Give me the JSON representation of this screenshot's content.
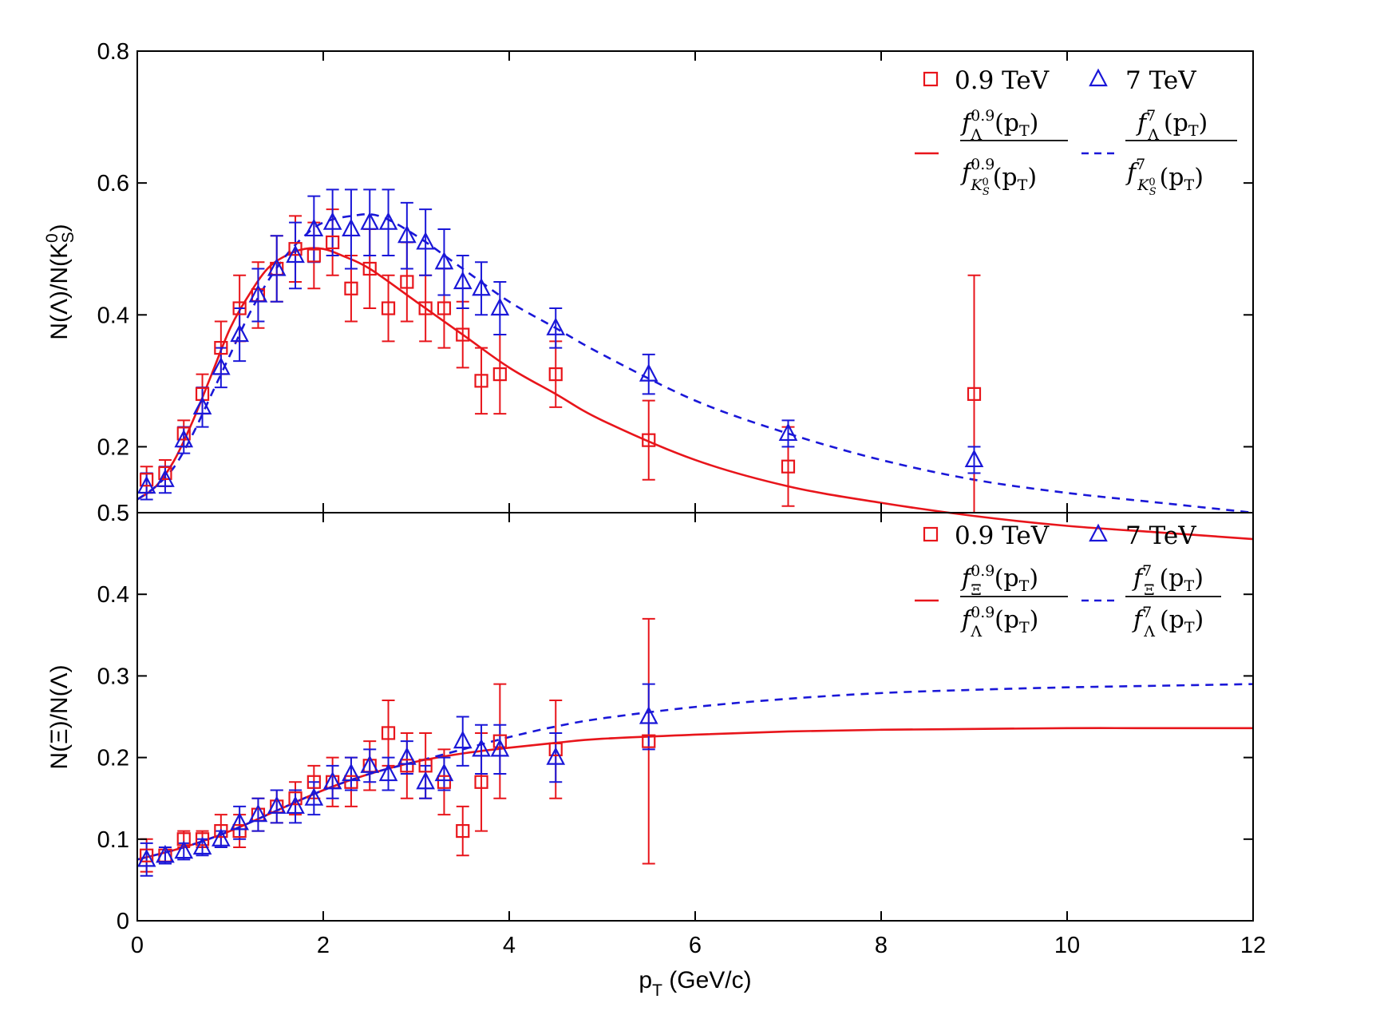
{
  "chart_data": [
    {
      "type": "scatter",
      "panel": "top",
      "ylabel_text": "N(Λ)/N(K",
      "ylabel_sup": "0",
      "ylabel_sub": "S",
      "ylabel_close": ")",
      "xlim": [
        0,
        12
      ],
      "ylim": [
        0.1,
        0.8
      ],
      "yticks": [
        0.2,
        0.4,
        0.6,
        0.8
      ],
      "ytick_labels": [
        "0.2",
        "0.4",
        "0.6",
        "0.8"
      ],
      "bottom_label": "0.5",
      "series": [
        {
          "name": "0.9 TeV",
          "color": "#e8151b",
          "marker": "square",
          "x": [
            0.1,
            0.3,
            0.5,
            0.7,
            0.9,
            1.1,
            1.3,
            1.5,
            1.7,
            1.9,
            2.1,
            2.3,
            2.5,
            2.7,
            2.9,
            3.1,
            3.3,
            3.5,
            3.7,
            3.9,
            4.5,
            5.5,
            7.0,
            9.0
          ],
          "y": [
            0.15,
            0.16,
            0.22,
            0.28,
            0.35,
            0.41,
            0.43,
            0.47,
            0.5,
            0.49,
            0.51,
            0.44,
            0.47,
            0.41,
            0.45,
            0.41,
            0.41,
            0.37,
            0.3,
            0.31,
            0.31,
            0.21,
            0.17,
            0.28
          ],
          "err": [
            0.02,
            0.02,
            0.02,
            0.03,
            0.04,
            0.05,
            0.05,
            0.05,
            0.05,
            0.05,
            0.05,
            0.05,
            0.06,
            0.05,
            0.06,
            0.05,
            0.06,
            0.05,
            0.05,
            0.06,
            0.05,
            0.06,
            0.06,
            0.18
          ]
        },
        {
          "name": "7 TeV",
          "color": "#1a17d8",
          "marker": "triangle",
          "x": [
            0.1,
            0.3,
            0.5,
            0.7,
            0.9,
            1.1,
            1.3,
            1.5,
            1.7,
            1.9,
            2.1,
            2.3,
            2.5,
            2.7,
            2.9,
            3.1,
            3.3,
            3.5,
            3.7,
            3.9,
            4.5,
            5.5,
            7.0,
            9.0
          ],
          "y": [
            0.14,
            0.15,
            0.21,
            0.26,
            0.32,
            0.37,
            0.43,
            0.47,
            0.49,
            0.53,
            0.54,
            0.53,
            0.54,
            0.54,
            0.52,
            0.51,
            0.48,
            0.45,
            0.44,
            0.41,
            0.38,
            0.31,
            0.22,
            0.18
          ],
          "err": [
            0.02,
            0.02,
            0.02,
            0.03,
            0.03,
            0.04,
            0.04,
            0.05,
            0.05,
            0.05,
            0.05,
            0.06,
            0.05,
            0.05,
            0.05,
            0.05,
            0.05,
            0.04,
            0.04,
            0.04,
            0.03,
            0.03,
            0.02,
            0.02
          ]
        }
      ],
      "curves": [
        {
          "name": "f_Λ^0.9(pT)/f_KS0^0.9(pT)",
          "color": "#e8151b",
          "style": "solid",
          "x": [
            0,
            0.2,
            0.4,
            0.6,
            0.8,
            1.0,
            1.2,
            1.4,
            1.6,
            1.8,
            2.0,
            2.2,
            2.5,
            3.0,
            3.5,
            4.0,
            4.5,
            5.0,
            6.0,
            7.0,
            8.0,
            9.0,
            10.0,
            11.0,
            12.0
          ],
          "y": [
            0.12,
            0.14,
            0.18,
            0.24,
            0.31,
            0.38,
            0.43,
            0.47,
            0.49,
            0.5,
            0.5,
            0.49,
            0.47,
            0.42,
            0.37,
            0.32,
            0.28,
            0.24,
            0.18,
            0.14,
            0.115,
            0.095,
            0.08,
            0.07,
            0.06
          ]
        },
        {
          "name": "f_Λ^7(pT)/f_KS0^7(pT)",
          "color": "#1a17d8",
          "style": "dashed",
          "x": [
            0,
            0.2,
            0.4,
            0.6,
            0.8,
            1.0,
            1.2,
            1.4,
            1.6,
            1.8,
            2.0,
            2.3,
            2.6,
            3.0,
            3.5,
            4.0,
            4.5,
            5.0,
            6.0,
            7.0,
            8.0,
            9.0,
            10.0,
            11.0,
            12.0
          ],
          "y": [
            0.12,
            0.14,
            0.17,
            0.22,
            0.28,
            0.34,
            0.4,
            0.45,
            0.49,
            0.52,
            0.54,
            0.55,
            0.55,
            0.52,
            0.47,
            0.42,
            0.38,
            0.34,
            0.27,
            0.22,
            0.18,
            0.15,
            0.13,
            0.115,
            0.1
          ]
        }
      ],
      "legend": {
        "marker_labels": [
          "0.9 TeV",
          "7 TeV"
        ],
        "red_frac": {
          "num_sym": "f",
          "num_sub": "Λ",
          "num_sup": "0.9",
          "num_arg": "(p",
          "num_arg_sub": "T",
          "num_close": ")",
          "den_sym": "f",
          "den_sub": "K",
          "den_sub2": "S",
          "den_subsup": "0",
          "den_sup": "0.9",
          "den_arg": "(p",
          "den_arg_sub": "T",
          "den_close": ")"
        },
        "blue_frac": {
          "num_sym": "f",
          "num_sub": "Λ",
          "num_sup": "7",
          "num_arg": "(p",
          "num_arg_sub": "T",
          "num_close": ")",
          "den_sym": "f",
          "den_sub": "K",
          "den_sub2": "S",
          "den_subsup": "0",
          "den_sup": "7",
          "den_arg": "(p",
          "den_arg_sub": "T",
          "den_close": ")"
        }
      }
    },
    {
      "type": "scatter",
      "panel": "bottom",
      "ylabel": "N(Ξ)/N(Λ)",
      "xlabel_main": "p",
      "xlabel_sub": "T",
      "xlabel_rest": " (GeV/c)",
      "xlim": [
        0,
        12
      ],
      "ylim": [
        0,
        0.5
      ],
      "xticks": [
        0,
        2,
        4,
        6,
        8,
        10,
        12
      ],
      "xtick_labels": [
        "0",
        "2",
        "4",
        "6",
        "8",
        "10",
        "12"
      ],
      "yticks": [
        0,
        0.1,
        0.2,
        0.3,
        0.4
      ],
      "ytick_labels": [
        "0",
        "0.1",
        "0.2",
        "0.3",
        "0.4"
      ],
      "series": [
        {
          "name": "0.9 TeV",
          "color": "#e8151b",
          "marker": "square",
          "x": [
            0.1,
            0.3,
            0.5,
            0.7,
            0.9,
            1.1,
            1.3,
            1.5,
            1.7,
            1.9,
            2.1,
            2.3,
            2.5,
            2.7,
            2.9,
            3.1,
            3.3,
            3.5,
            3.7,
            3.9,
            4.5,
            5.5
          ],
          "y": [
            0.08,
            0.08,
            0.1,
            0.1,
            0.11,
            0.11,
            0.13,
            0.14,
            0.15,
            0.17,
            0.17,
            0.17,
            0.19,
            0.23,
            0.19,
            0.19,
            0.17,
            0.11,
            0.17,
            0.22,
            0.21,
            0.22
          ],
          "err": [
            0.02,
            0.01,
            0.01,
            0.01,
            0.02,
            0.02,
            0.02,
            0.02,
            0.02,
            0.02,
            0.03,
            0.03,
            0.03,
            0.04,
            0.04,
            0.04,
            0.04,
            0.03,
            0.06,
            0.07,
            0.06,
            0.15
          ]
        },
        {
          "name": "7 TeV",
          "color": "#1a17d8",
          "marker": "triangle",
          "x": [
            0.1,
            0.3,
            0.5,
            0.7,
            0.9,
            1.1,
            1.3,
            1.5,
            1.7,
            1.9,
            2.1,
            2.3,
            2.5,
            2.7,
            2.9,
            3.1,
            3.3,
            3.5,
            3.7,
            3.9,
            4.5,
            5.5
          ],
          "y": [
            0.075,
            0.08,
            0.085,
            0.09,
            0.1,
            0.12,
            0.13,
            0.14,
            0.14,
            0.15,
            0.17,
            0.18,
            0.19,
            0.18,
            0.2,
            0.17,
            0.18,
            0.22,
            0.21,
            0.21,
            0.2,
            0.25
          ],
          "err": [
            0.02,
            0.01,
            0.01,
            0.01,
            0.01,
            0.02,
            0.02,
            0.02,
            0.02,
            0.02,
            0.02,
            0.02,
            0.02,
            0.02,
            0.02,
            0.02,
            0.02,
            0.03,
            0.03,
            0.03,
            0.03,
            0.04
          ]
        }
      ],
      "curves": [
        {
          "name": "f_Ξ^0.9(pT)/f_Λ^0.9(pT)",
          "color": "#e8151b",
          "style": "solid",
          "x": [
            0,
            0.5,
            1.0,
            1.5,
            2.0,
            2.5,
            3.0,
            3.5,
            4.0,
            4.5,
            5.0,
            6.0,
            7.0,
            8.0,
            9.0,
            10.0,
            11.0,
            12.0
          ],
          "y": [
            0.075,
            0.09,
            0.11,
            0.135,
            0.16,
            0.18,
            0.195,
            0.205,
            0.212,
            0.218,
            0.223,
            0.228,
            0.232,
            0.234,
            0.235,
            0.236,
            0.236,
            0.236
          ]
        },
        {
          "name": "f_Ξ^7(pT)/f_Λ^7(pT)",
          "color": "#1a17d8",
          "style": "dashed",
          "x": [
            0,
            0.5,
            1.0,
            1.5,
            2.0,
            2.5,
            3.0,
            3.5,
            4.0,
            4.5,
            5.0,
            6.0,
            7.0,
            8.0,
            9.0,
            10.0,
            11.0,
            12.0
          ],
          "y": [
            0.075,
            0.09,
            0.11,
            0.135,
            0.16,
            0.18,
            0.195,
            0.21,
            0.225,
            0.238,
            0.248,
            0.262,
            0.272,
            0.279,
            0.283,
            0.286,
            0.288,
            0.29
          ]
        }
      ],
      "legend": {
        "marker_labels": [
          "0.9 TeV",
          "7 TeV"
        ],
        "red_frac": {
          "num_sym": "f",
          "num_sub": "Ξ",
          "num_sup": "0.9",
          "num_arg": "(p",
          "num_arg_sub": "T",
          "num_close": ")",
          "den_sym": "f",
          "den_sub": "Λ",
          "den_sup": "0.9",
          "den_arg": "(p",
          "den_arg_sub": "T",
          "den_close": ")"
        },
        "blue_frac": {
          "num_sym": "f",
          "num_sub": "Ξ",
          "num_sup": "7",
          "num_arg": "(p",
          "num_arg_sub": "T",
          "num_close": ")",
          "den_sym": "f",
          "den_sub": "Λ",
          "den_sup": "7",
          "den_arg": "(p",
          "den_arg_sub": "T",
          "den_close": ")"
        }
      }
    }
  ]
}
